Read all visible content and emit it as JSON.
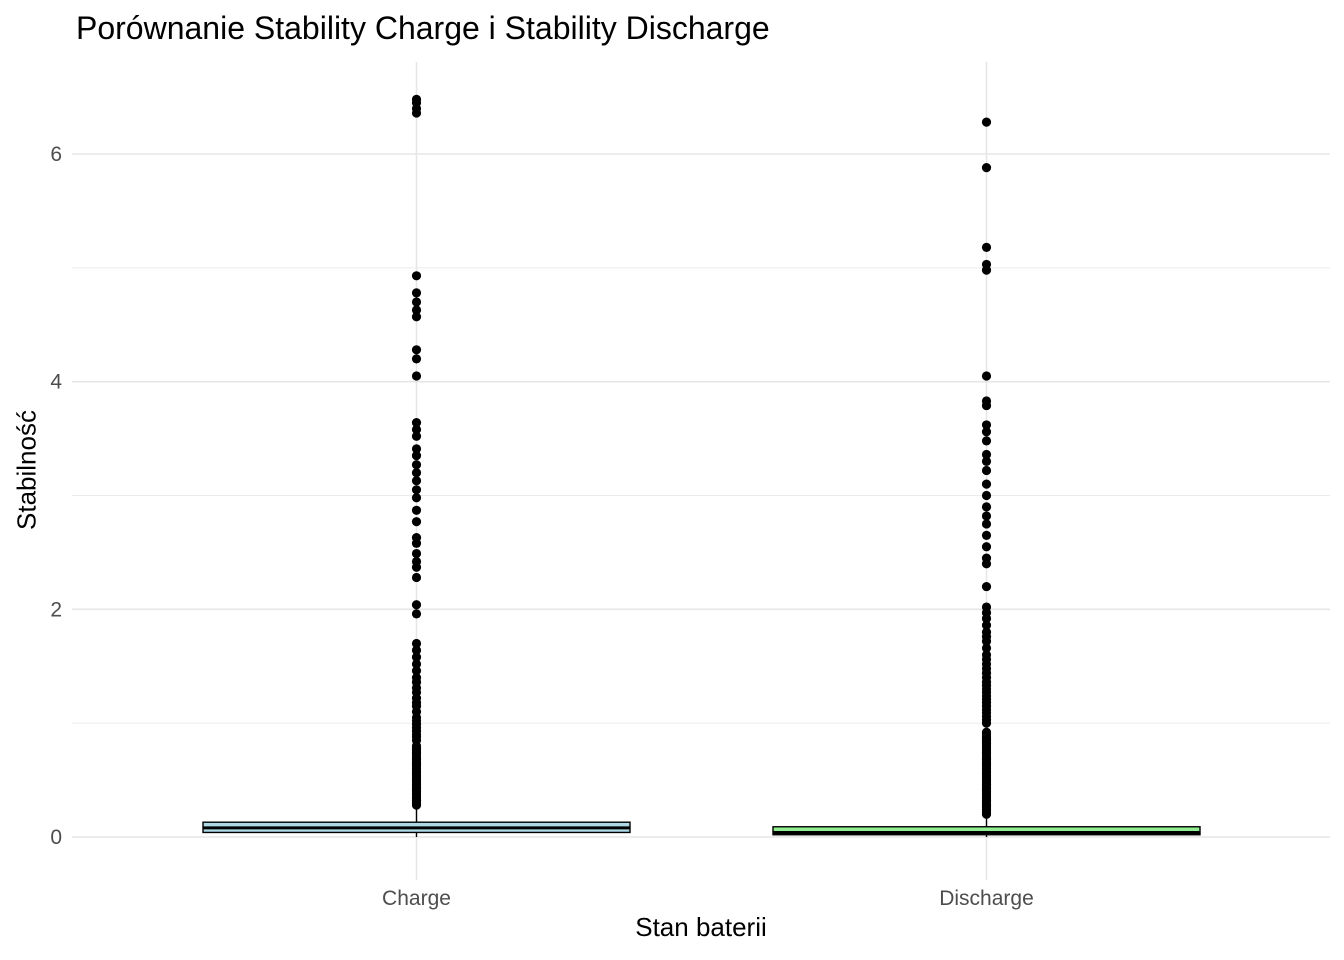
{
  "chart_data": {
    "type": "boxplot",
    "title": "Porównanie Stability Charge i Stability Discharge",
    "xlabel": "Stan baterii",
    "ylabel": "Stabilność",
    "ylim": [
      -0.2,
      6.6
    ],
    "yticks": [
      0,
      2,
      4,
      6
    ],
    "grid": true,
    "categories": [
      "Charge",
      "Discharge"
    ],
    "boxes": [
      {
        "name": "Charge",
        "fill": "#add8e6",
        "q1": 0.04,
        "median": 0.08,
        "q3": 0.13,
        "whisker_low": 0.0,
        "whisker_high": 0.27,
        "outliers": [
          0.28,
          0.3,
          0.32,
          0.34,
          0.36,
          0.38,
          0.4,
          0.42,
          0.44,
          0.46,
          0.48,
          0.5,
          0.52,
          0.54,
          0.56,
          0.58,
          0.6,
          0.62,
          0.64,
          0.66,
          0.68,
          0.7,
          0.72,
          0.74,
          0.76,
          0.78,
          0.8,
          0.85,
          0.88,
          0.9,
          0.93,
          0.96,
          0.99,
          1.02,
          1.05,
          1.1,
          1.15,
          1.18,
          1.22,
          1.27,
          1.31,
          1.36,
          1.4,
          1.46,
          1.52,
          1.58,
          1.64,
          1.7,
          1.96,
          2.04,
          2.28,
          2.37,
          2.42,
          2.49,
          2.58,
          2.63,
          2.77,
          2.87,
          2.98,
          3.05,
          3.13,
          3.2,
          3.27,
          3.35,
          3.41,
          3.52,
          3.58,
          3.64,
          4.05,
          4.2,
          4.28,
          4.57,
          4.63,
          4.7,
          4.78,
          4.93,
          6.36,
          6.4,
          6.45,
          6.48
        ]
      },
      {
        "name": "Discharge",
        "fill": "#90ee90",
        "q1": 0.02,
        "median": 0.04,
        "q3": 0.09,
        "whisker_low": 0.0,
        "whisker_high": 0.19,
        "outliers": [
          0.2,
          0.22,
          0.24,
          0.26,
          0.28,
          0.3,
          0.32,
          0.34,
          0.36,
          0.38,
          0.4,
          0.42,
          0.44,
          0.46,
          0.48,
          0.5,
          0.52,
          0.54,
          0.56,
          0.58,
          0.6,
          0.62,
          0.64,
          0.66,
          0.68,
          0.7,
          0.72,
          0.74,
          0.76,
          0.78,
          0.8,
          0.82,
          0.84,
          0.86,
          0.88,
          0.9,
          0.92,
          1.0,
          1.03,
          1.06,
          1.09,
          1.12,
          1.15,
          1.18,
          1.21,
          1.24,
          1.27,
          1.3,
          1.33,
          1.36,
          1.4,
          1.44,
          1.48,
          1.52,
          1.56,
          1.6,
          1.66,
          1.72,
          1.76,
          1.8,
          1.86,
          1.92,
          1.97,
          2.02,
          2.2,
          2.4,
          2.45,
          2.55,
          2.65,
          2.75,
          2.82,
          2.9,
          3.0,
          3.1,
          3.22,
          3.3,
          3.36,
          3.48,
          3.56,
          3.62,
          3.79,
          3.83,
          4.05,
          4.98,
          5.03,
          5.18,
          5.88,
          6.28
        ]
      }
    ]
  }
}
